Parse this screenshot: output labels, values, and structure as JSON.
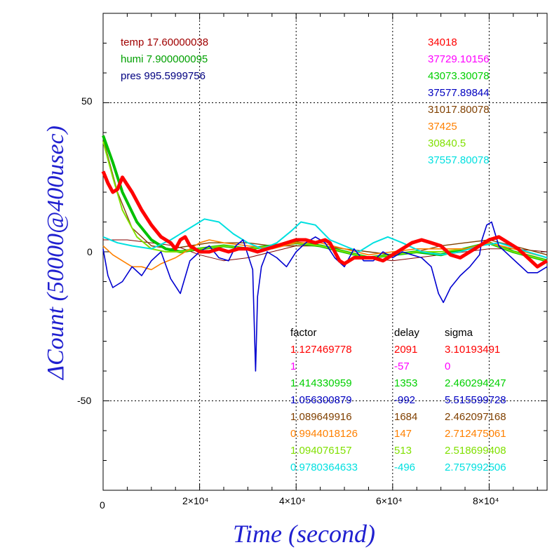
{
  "chart_data": {
    "type": "line",
    "xlabel": "Time (second)",
    "ylabel": "ΔCount (50000@400usec)",
    "xlim": [
      0,
      92000
    ],
    "ylim": [
      -80,
      80
    ],
    "grid": true,
    "x_tick_labels": [
      "0",
      "2×10⁴",
      "4×10⁴",
      "6×10⁴",
      "8×10⁴"
    ],
    "y_tick_labels": [
      "50",
      "0",
      "-50"
    ],
    "env": [
      {
        "label": "temp",
        "value": "17.60000038",
        "color": "#a00000"
      },
      {
        "label": "humi",
        "value": "7.900000095",
        "color": "#00a000"
      },
      {
        "label": "pres",
        "value": "995.5999756",
        "color": "#000080"
      }
    ],
    "counts": [
      {
        "value": "34018",
        "color": "#ff0000"
      },
      {
        "value": "37729.10156",
        "color": "#ff00ff"
      },
      {
        "value": "43073.30078",
        "color": "#00d000"
      },
      {
        "value": "37577.89844",
        "color": "#0000c0"
      },
      {
        "value": "31017.80078",
        "color": "#804000"
      },
      {
        "value": "37425",
        "color": "#ff8000"
      },
      {
        "value": "30840.5",
        "color": "#80e000"
      },
      {
        "value": "37557.80078",
        "color": "#00e0e0"
      }
    ],
    "table": {
      "headers": [
        "factor",
        "delay",
        "sigma"
      ],
      "rows": [
        {
          "factor": "1.127469778",
          "delay": "2091",
          "sigma": "3.10193491",
          "color": "#ff0000"
        },
        {
          "factor": "1",
          "delay": "-57",
          "sigma": "0",
          "color": "#ff00ff"
        },
        {
          "factor": "1.414330959",
          "delay": "1353",
          "sigma": "2.460294247",
          "color": "#00d000"
        },
        {
          "factor": "1.056300879",
          "delay": "-992",
          "sigma": "5.515599728",
          "color": "#0000c0"
        },
        {
          "factor": "1.089649916",
          "delay": "1684",
          "sigma": "2.462097168",
          "color": "#804000"
        },
        {
          "factor": "0.9944018126",
          "delay": "147",
          "sigma": "2.712475061",
          "color": "#ff8000"
        },
        {
          "factor": "1.094076157",
          "delay": "513",
          "sigma": "2.518699408",
          "color": "#80e000"
        },
        {
          "factor": "0.9780364633",
          "delay": "-496",
          "sigma": "2.757992506",
          "color": "#00e0e0"
        }
      ]
    },
    "series": [
      {
        "color": "#800000",
        "x": [
          0,
          5000,
          10000,
          15000,
          20000,
          25000,
          30000,
          35000,
          40000,
          45000,
          50000,
          55000,
          60000,
          65000,
          70000,
          75000,
          80000,
          85000,
          92000
        ],
        "y": [
          4,
          4,
          3,
          2,
          -1,
          -3,
          -2,
          0,
          2,
          2,
          0,
          -2,
          -3,
          -2,
          -1,
          0,
          1,
          1,
          0
        ]
      },
      {
        "color": "#804000",
        "x": [
          0,
          3000,
          6000,
          10000,
          14000,
          18000,
          22000,
          26000,
          30000,
          35000,
          40000,
          45000,
          50000,
          55000,
          60000,
          65000,
          70000,
          75000,
          80000,
          85000,
          92000
        ],
        "y": [
          38,
          20,
          8,
          2,
          1,
          2,
          3,
          3,
          3,
          2,
          2,
          2,
          1,
          0,
          -1,
          0,
          2,
          3,
          4,
          2,
          -1
        ]
      },
      {
        "color": "#00c000",
        "x": [
          0,
          2000,
          4000,
          7000,
          10000,
          13000,
          16000,
          20000,
          25000,
          30000,
          35000,
          40000,
          45000,
          50000,
          55000,
          60000,
          65000,
          70000,
          75000,
          80000,
          85000,
          92000
        ],
        "y": [
          39,
          30,
          20,
          10,
          4,
          1,
          0,
          1,
          2,
          1,
          2,
          3,
          2,
          0,
          -2,
          -1,
          0,
          -1,
          1,
          3,
          0,
          -3
        ]
      },
      {
        "color": "#80e000",
        "x": [
          0,
          2000,
          4000,
          7000,
          10000,
          13000,
          16000,
          20000,
          25000,
          30000,
          35000,
          40000,
          45000,
          50000,
          55000,
          60000,
          65000,
          70000,
          75000,
          80000,
          85000,
          92000
        ],
        "y": [
          37,
          25,
          14,
          5,
          1,
          0,
          0,
          1,
          2,
          1,
          2,
          3,
          2,
          0,
          -2,
          -1,
          0,
          0,
          1,
          3,
          0,
          -3
        ]
      },
      {
        "color": "#ff8000",
        "x": [
          0,
          2000,
          4000,
          6000,
          8000,
          10000,
          12000,
          15000,
          18000,
          20000,
          22000,
          25000,
          30000,
          35000,
          40000,
          45000,
          50000,
          55000,
          60000,
          65000,
          70000,
          75000,
          80000,
          85000,
          92000
        ],
        "y": [
          2,
          -1,
          -3,
          -5,
          -5,
          -6,
          -4,
          -2,
          1,
          3,
          4,
          3,
          2,
          1,
          3,
          3,
          1,
          -1,
          0,
          1,
          1,
          1,
          3,
          1,
          -2
        ]
      },
      {
        "color": "#00e0e0",
        "x": [
          0,
          3000,
          6000,
          10000,
          14000,
          18000,
          21000,
          24000,
          27000,
          30000,
          33000,
          36000,
          39000,
          41000,
          44000,
          47000,
          50000,
          53000,
          56000,
          59000,
          62000,
          66000,
          70000,
          74000,
          78000,
          82000,
          86000,
          92000
        ],
        "y": [
          5,
          3,
          2,
          1,
          4,
          8,
          11,
          10,
          6,
          3,
          1,
          3,
          7,
          10,
          9,
          4,
          2,
          0,
          3,
          5,
          3,
          0,
          -1,
          0,
          2,
          3,
          1,
          -2
        ]
      },
      {
        "color": "#0000d0",
        "x": [
          0,
          1000,
          2000,
          4000,
          6000,
          8000,
          10000,
          12000,
          14000,
          16000,
          18000,
          20000,
          22000,
          24000,
          26000,
          27500,
          29000,
          31000,
          31600,
          32000,
          32800,
          34000,
          36000,
          38000,
          40000,
          42000,
          44000,
          46000,
          48000,
          50000,
          52000,
          54000,
          56000,
          58000,
          60000,
          62000,
          64000,
          66000,
          68000,
          69500,
          70500,
          72000,
          74000,
          76000,
          78000,
          78500,
          79500,
          80500,
          82000,
          84000,
          86000,
          88000,
          90000,
          92000
        ],
        "y": [
          1,
          -8,
          -12,
          -10,
          -5,
          -8,
          -3,
          0,
          -9,
          -14,
          -3,
          0,
          2,
          -2,
          -3,
          2,
          4,
          -6,
          -40,
          -15,
          -5,
          0,
          -2,
          -5,
          0,
          3,
          5,
          3,
          -2,
          -5,
          1,
          -3,
          -3,
          0,
          -2,
          0,
          -1,
          -2,
          -5,
          -14,
          -17,
          -12,
          -8,
          -5,
          -1,
          4,
          9,
          10,
          2,
          -1,
          -4,
          -7,
          -7,
          -5
        ]
      },
      {
        "color": "#ff0000",
        "x": [
          0,
          1000,
          2000,
          3000,
          4000,
          6000,
          8000,
          10000,
          12000,
          14000,
          15000,
          16000,
          17000,
          18000,
          20000,
          22000,
          24000,
          26000,
          28000,
          30000,
          32000,
          34000,
          36000,
          38000,
          40000,
          42000,
          44000,
          46000,
          47000,
          48000,
          49000,
          50000,
          52000,
          54000,
          56000,
          58000,
          60000,
          62000,
          64000,
          66000,
          68000,
          70000,
          72000,
          74000,
          76000,
          78000,
          80000,
          82000,
          84000,
          86000,
          88000,
          90000,
          92000
        ],
        "y": [
          27,
          23,
          20,
          21,
          25,
          20,
          14,
          9,
          5,
          3,
          1,
          4,
          5,
          2,
          0,
          0,
          1,
          0,
          1,
          1,
          0,
          1,
          2,
          3,
          4,
          4,
          3,
          4,
          3,
          0,
          -3,
          -4,
          -2,
          -2,
          -2,
          -3,
          -1,
          1,
          3,
          4,
          3,
          2,
          -1,
          -2,
          0,
          2,
          4,
          5,
          3,
          1,
          -2,
          -5,
          -3
        ]
      }
    ]
  }
}
